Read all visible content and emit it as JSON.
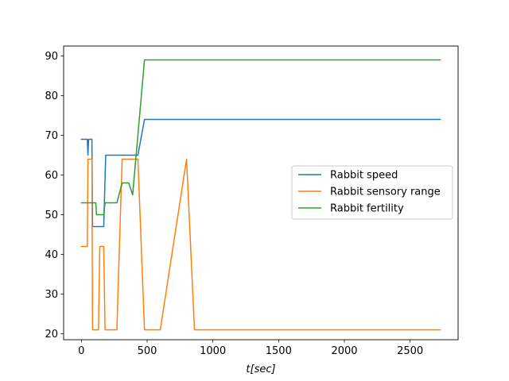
{
  "chart_data": {
    "type": "line",
    "title": "",
    "xlabel": "t[sec]",
    "ylabel": "",
    "xlim": [
      -135,
      2865
    ],
    "ylim": [
      18.5,
      92.5
    ],
    "x_ticks": [
      0,
      500,
      1000,
      1500,
      2000,
      2500
    ],
    "y_ticks": [
      20,
      30,
      40,
      50,
      60,
      70,
      80,
      90
    ],
    "x_tick_labels": [
      "0",
      "500",
      "1000",
      "1500",
      "2000",
      "2500"
    ],
    "y_tick_labels": [
      "20",
      "30",
      "40",
      "50",
      "60",
      "70",
      "80",
      "90"
    ],
    "grid": false,
    "legend_position": "center-right",
    "series": [
      {
        "name": "Rabbit speed",
        "color": "#1f77b4",
        "points": [
          [
            0,
            69
          ],
          [
            45,
            69
          ],
          [
            50,
            65
          ],
          [
            55,
            69
          ],
          [
            80,
            69
          ],
          [
            85,
            47
          ],
          [
            170,
            47
          ],
          [
            185,
            65
          ],
          [
            430,
            65
          ],
          [
            480,
            74
          ],
          [
            2730,
            74
          ]
        ]
      },
      {
        "name": "Rabbit sensory range",
        "color": "#ff7f0e",
        "points": [
          [
            0,
            42
          ],
          [
            45,
            42
          ],
          [
            50,
            64
          ],
          [
            80,
            64
          ],
          [
            85,
            21
          ],
          [
            130,
            21
          ],
          [
            140,
            42
          ],
          [
            170,
            42
          ],
          [
            180,
            21
          ],
          [
            270,
            21
          ],
          [
            310,
            64
          ],
          [
            430,
            64
          ],
          [
            480,
            21
          ],
          [
            600,
            21
          ],
          [
            800,
            64
          ],
          [
            860,
            21
          ],
          [
            2730,
            21
          ]
        ]
      },
      {
        "name": "Rabbit fertility",
        "color": "#2ca02c",
        "points": [
          [
            0,
            53
          ],
          [
            110,
            53
          ],
          [
            115,
            50
          ],
          [
            170,
            50
          ],
          [
            180,
            53
          ],
          [
            270,
            53
          ],
          [
            310,
            58
          ],
          [
            360,
            58
          ],
          [
            390,
            55
          ],
          [
            480,
            89
          ],
          [
            2730,
            89
          ]
        ]
      }
    ]
  }
}
